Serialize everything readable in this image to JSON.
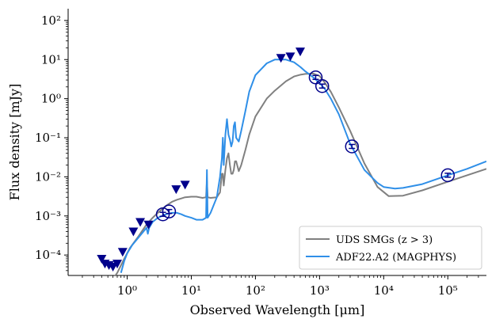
{
  "chart_data": {
    "type": "line",
    "xlabel": "Observed Wavelength [μm]",
    "ylabel": "Flux density [mJy]",
    "xscale": "log",
    "yscale": "log",
    "xlim": [
      0.12,
      400000
    ],
    "ylim": [
      3e-05,
      200
    ],
    "xticks": [
      {
        "value": 1,
        "label": "10⁰"
      },
      {
        "value": 10,
        "label": "10¹"
      },
      {
        "value": 100,
        "label": "10²"
      },
      {
        "value": 1000,
        "label": "10³"
      },
      {
        "value": 10000,
        "label": "10⁴"
      },
      {
        "value": 100000,
        "label": "10⁵"
      }
    ],
    "yticks": [
      {
        "value": 0.0001,
        "label": "10⁻⁴"
      },
      {
        "value": 0.001,
        "label": "10⁻³"
      },
      {
        "value": 0.01,
        "label": "10⁻²"
      },
      {
        "value": 0.1,
        "label": "10⁻¹"
      },
      {
        "value": 1,
        "label": "10⁰"
      },
      {
        "value": 10,
        "label": "10¹"
      },
      {
        "value": 100,
        "label": "10²"
      }
    ],
    "legend": {
      "position": "lower-right",
      "entries": [
        {
          "label": "UDS SMGs (z > 3)",
          "color": "#808080"
        },
        {
          "label": "ADF22.A2 (MAGPHYS)",
          "color": "#2f8fe8"
        }
      ]
    },
    "series": [
      {
        "name": "UDS SMGs (z > 3)",
        "color": "#808080",
        "x": [
          0.55,
          0.7,
          0.9,
          1.1,
          1.5,
          2.0,
          2.5,
          3.0,
          4.0,
          5.0,
          6.0,
          7.0,
          8.0,
          10.0,
          12.0,
          15.0,
          17.0,
          17.5,
          18.0,
          20.0,
          25.0,
          28.0,
          30.0,
          31.0,
          32.0,
          34.0,
          36.0,
          38.0,
          40.0,
          42.0,
          44.0,
          46.0,
          48.0,
          50.0,
          55.0,
          60.0,
          70.0,
          80.0,
          100.0,
          150.0,
          200.0,
          300.0,
          400.0,
          500.0,
          600.0,
          800.0,
          1000.0,
          1200.0,
          1500.0,
          2000.0,
          3000.0,
          5000.0,
          8000.0,
          12000.0,
          20000.0,
          40000.0,
          100000.0,
          200000.0,
          400000.0
        ],
        "y": [
          2e-05,
          3.5e-05,
          8e-05,
          0.00015,
          0.0003,
          0.0006,
          0.0009,
          0.0012,
          0.0018,
          0.0023,
          0.0026,
          0.0028,
          0.003,
          0.0031,
          0.0031,
          0.0029,
          0.003,
          0.008,
          0.003,
          0.0029,
          0.003,
          0.004,
          0.012,
          0.012,
          0.006,
          0.015,
          0.03,
          0.04,
          0.02,
          0.012,
          0.012,
          0.015,
          0.025,
          0.025,
          0.014,
          0.02,
          0.05,
          0.12,
          0.35,
          1.0,
          1.6,
          2.8,
          3.7,
          4.1,
          4.3,
          4.4,
          3.8,
          2.6,
          1.5,
          0.6,
          0.15,
          0.022,
          0.0055,
          0.0032,
          0.0033,
          0.0045,
          0.0075,
          0.011,
          0.016
        ]
      },
      {
        "name": "ADF22.A2 (MAGPHYS)",
        "color": "#2f8fe8",
        "x": [
          0.8,
          0.9,
          1.0,
          1.2,
          1.5,
          1.8,
          2.0,
          2.1,
          2.2,
          2.5,
          3.0,
          3.5,
          4.0,
          5.0,
          6.0,
          7.0,
          8.0,
          10.0,
          12.0,
          15.0,
          17.0,
          17.5,
          18.0,
          20.0,
          25.0,
          28.0,
          30.0,
          31.0,
          32.0,
          34.0,
          36.0,
          38.0,
          40.0,
          42.0,
          44.0,
          46.0,
          48.0,
          50.0,
          55.0,
          60.0,
          70.0,
          80.0,
          100.0,
          150.0,
          200.0,
          300.0,
          400.0,
          500.0,
          600.0,
          800.0,
          1000.0,
          1200.0,
          1500.0,
          2000.0,
          3000.0,
          5000.0,
          8000.0,
          10000.0,
          15000.0,
          20000.0,
          40000.0,
          100000.0,
          200000.0,
          400000.0
        ],
        "y": [
          3.5e-05,
          7e-05,
          0.00011,
          0.00018,
          0.00028,
          0.0004,
          0.0005,
          0.00035,
          0.0005,
          0.0007,
          0.0009,
          0.001,
          0.0011,
          0.0012,
          0.0012,
          0.0011,
          0.001,
          0.0009,
          0.0008,
          0.0008,
          0.0009,
          0.015,
          0.0009,
          0.0012,
          0.003,
          0.01,
          0.03,
          0.1,
          0.02,
          0.12,
          0.3,
          0.12,
          0.09,
          0.06,
          0.08,
          0.2,
          0.25,
          0.1,
          0.08,
          0.15,
          0.5,
          1.5,
          4.0,
          8.0,
          10.0,
          10.0,
          8.5,
          6.5,
          5.0,
          3.5,
          2.5,
          1.8,
          1.0,
          0.4,
          0.07,
          0.015,
          0.007,
          0.0055,
          0.005,
          0.0052,
          0.0065,
          0.011,
          0.016,
          0.025
        ]
      }
    ],
    "upper_limits": [
      {
        "x": 0.4,
        "y": 8e-05
      },
      {
        "x": 0.45,
        "y": 6e-05
      },
      {
        "x": 0.52,
        "y": 5.5e-05
      },
      {
        "x": 0.6,
        "y": 5e-05
      },
      {
        "x": 0.7,
        "y": 6e-05
      },
      {
        "x": 0.85,
        "y": 0.00012
      },
      {
        "x": 1.25,
        "y": 0.0004
      },
      {
        "x": 1.6,
        "y": 0.0007
      },
      {
        "x": 2.15,
        "y": 0.0006
      },
      {
        "x": 5.8,
        "y": 0.0048
      },
      {
        "x": 8.0,
        "y": 0.0063
      },
      {
        "x": 250,
        "y": 11
      },
      {
        "x": 350,
        "y": 12
      },
      {
        "x": 500,
        "y": 16
      }
    ],
    "detections": [
      {
        "x": 3.6,
        "y": 0.0011
      },
      {
        "x": 4.5,
        "y": 0.0013
      },
      {
        "x": 870,
        "y": 3.5
      },
      {
        "x": 1100,
        "y": 2.1
      },
      {
        "x": 3200,
        "y": 0.06
      },
      {
        "x": 100000,
        "y": 0.011
      }
    ],
    "marker_color": "#00008b"
  }
}
